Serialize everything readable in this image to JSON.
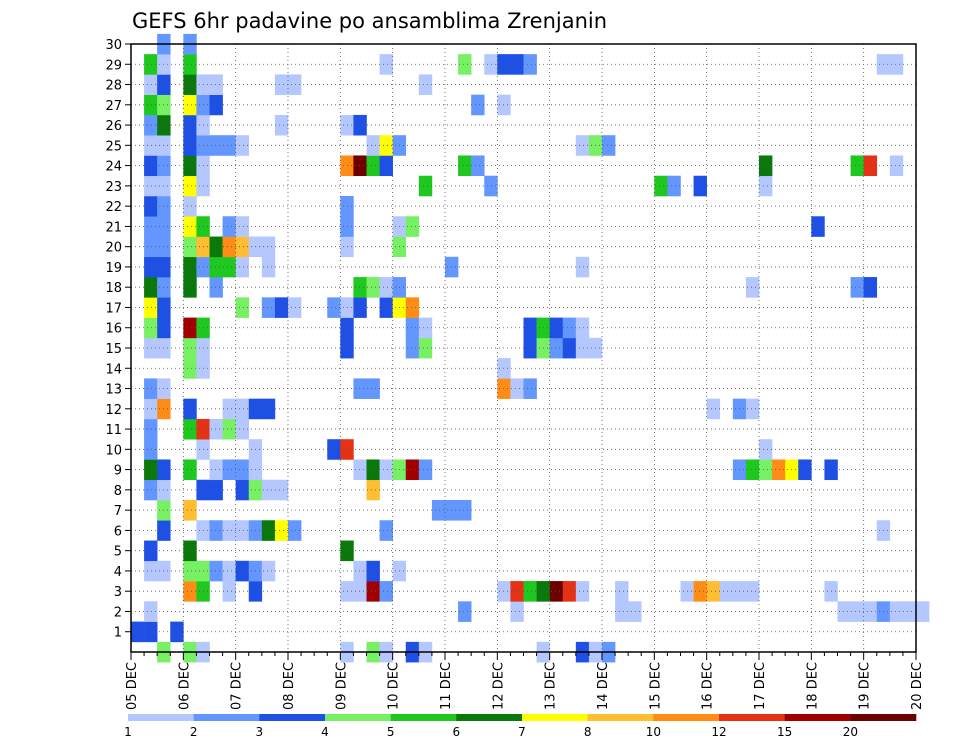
{
  "chart_data": {
    "type": "heatmap",
    "title": "GEFS 6hr padavine po ansamblima Zrenjanin",
    "xlabel": "",
    "ylabel": "",
    "x_ticks": [
      "05 DEC",
      "06 DEC",
      "07 DEC",
      "08 DEC",
      "09 DEC",
      "10 DEC",
      "11 DEC",
      "12 DEC",
      "13 DEC",
      "14 DEC",
      "15 DEC",
      "16 DEC",
      "17 DEC",
      "18 DEC",
      "19 DEC",
      "20 DEC"
    ],
    "y_ticks": [
      1,
      2,
      3,
      4,
      5,
      6,
      7,
      8,
      9,
      10,
      11,
      12,
      13,
      14,
      15,
      16,
      17,
      18,
      19,
      20,
      21,
      22,
      23,
      24,
      25,
      26,
      27,
      28,
      29,
      30
    ],
    "ylim": [
      0,
      30
    ],
    "x_steps": 60,
    "steps_per_day": 4,
    "grid": true,
    "legend": "colorbar-bottom",
    "colorbar": {
      "labels": [
        "1",
        "2",
        "3",
        "4",
        "5",
        "6",
        "7",
        "8",
        "10",
        "12",
        "15",
        "20"
      ],
      "colors": [
        "#b4c8ff",
        "#6496ff",
        "#1e50e6",
        "#78f064",
        "#1ec81e",
        "#0a780a",
        "#ffff00",
        "#ffbe32",
        "#ff8c14",
        "#e63214",
        "#a00000",
        "#6e0000"
      ]
    },
    "cells": [
      [
        1,
        0,
        3
      ],
      [
        1,
        1,
        3
      ],
      [
        1,
        3,
        3
      ],
      [
        2,
        1,
        1
      ],
      [
        2,
        38,
        1
      ],
      [
        2,
        25,
        2
      ],
      [
        2,
        29,
        1
      ],
      [
        2,
        37,
        1
      ],
      [
        2,
        54,
        1
      ],
      [
        2,
        55,
        1
      ],
      [
        2,
        56,
        1
      ],
      [
        2,
        57,
        2
      ],
      [
        2,
        58,
        1
      ],
      [
        2,
        59,
        1
      ],
      [
        2,
        60,
        1
      ],
      [
        3,
        4,
        9
      ],
      [
        3,
        5,
        5
      ],
      [
        3,
        7,
        1
      ],
      [
        3,
        9,
        3
      ],
      [
        3,
        16,
        1
      ],
      [
        3,
        17,
        1
      ],
      [
        3,
        18,
        11
      ],
      [
        3,
        19,
        2
      ],
      [
        3,
        28,
        1
      ],
      [
        3,
        29,
        10
      ],
      [
        3,
        30,
        5
      ],
      [
        3,
        31,
        6
      ],
      [
        3,
        32,
        12
      ],
      [
        3,
        33,
        10
      ],
      [
        3,
        34,
        1
      ],
      [
        3,
        37,
        1
      ],
      [
        3,
        42,
        1
      ],
      [
        3,
        43,
        9
      ],
      [
        3,
        44,
        8
      ],
      [
        3,
        45,
        1
      ],
      [
        3,
        46,
        1
      ],
      [
        3,
        47,
        1
      ],
      [
        3,
        53,
        1
      ],
      [
        4,
        1,
        1
      ],
      [
        4,
        2,
        1
      ],
      [
        4,
        4,
        4
      ],
      [
        4,
        5,
        4
      ],
      [
        4,
        6,
        2
      ],
      [
        4,
        7,
        1
      ],
      [
        4,
        8,
        3
      ],
      [
        4,
        9,
        2
      ],
      [
        4,
        10,
        1
      ],
      [
        4,
        17,
        1
      ],
      [
        4,
        18,
        3
      ],
      [
        4,
        20,
        1
      ],
      [
        5,
        1,
        3
      ],
      [
        5,
        4,
        6
      ],
      [
        5,
        16,
        6
      ],
      [
        6,
        2,
        3
      ],
      [
        6,
        5,
        1
      ],
      [
        6,
        6,
        2
      ],
      [
        6,
        7,
        1
      ],
      [
        6,
        8,
        1
      ],
      [
        6,
        9,
        2
      ],
      [
        6,
        10,
        6
      ],
      [
        6,
        11,
        7
      ],
      [
        6,
        12,
        2
      ],
      [
        6,
        19,
        2
      ],
      [
        6,
        57,
        1
      ],
      [
        7,
        2,
        4
      ],
      [
        7,
        4,
        8
      ],
      [
        7,
        23,
        2
      ],
      [
        7,
        24,
        2
      ],
      [
        7,
        25,
        2
      ],
      [
        8,
        1,
        2
      ],
      [
        8,
        2,
        1
      ],
      [
        8,
        5,
        3
      ],
      [
        8,
        6,
        3
      ],
      [
        8,
        8,
        3
      ],
      [
        8,
        9,
        4
      ],
      [
        8,
        10,
        1
      ],
      [
        8,
        11,
        1
      ],
      [
        8,
        18,
        8
      ],
      [
        9,
        1,
        6
      ],
      [
        9,
        2,
        3
      ],
      [
        9,
        4,
        5
      ],
      [
        9,
        6,
        1
      ],
      [
        9,
        7,
        2
      ],
      [
        9,
        8,
        2
      ],
      [
        9,
        9,
        1
      ],
      [
        9,
        17,
        1
      ],
      [
        9,
        18,
        6
      ],
      [
        9,
        19,
        1
      ],
      [
        9,
        20,
        4
      ],
      [
        9,
        21,
        11
      ],
      [
        9,
        22,
        2
      ],
      [
        9,
        46,
        2
      ],
      [
        9,
        47,
        5
      ],
      [
        9,
        48,
        4
      ],
      [
        9,
        49,
        9
      ],
      [
        9,
        50,
        7
      ],
      [
        9,
        51,
        3
      ],
      [
        9,
        53,
        3
      ],
      [
        10,
        1,
        2
      ],
      [
        10,
        5,
        1
      ],
      [
        10,
        9,
        1
      ],
      [
        10,
        15,
        3
      ],
      [
        10,
        16,
        10
      ],
      [
        10,
        48,
        1
      ],
      [
        11,
        1,
        2
      ],
      [
        11,
        4,
        5
      ],
      [
        11,
        5,
        10
      ],
      [
        11,
        6,
        1
      ],
      [
        11,
        7,
        4
      ],
      [
        11,
        8,
        1
      ],
      [
        12,
        1,
        1
      ],
      [
        12,
        2,
        9
      ],
      [
        12,
        4,
        3
      ],
      [
        12,
        7,
        1
      ],
      [
        12,
        8,
        1
      ],
      [
        12,
        9,
        3
      ],
      [
        12,
        10,
        3
      ],
      [
        12,
        44,
        1
      ],
      [
        12,
        46,
        2
      ],
      [
        12,
        47,
        1
      ],
      [
        13,
        1,
        2
      ],
      [
        13,
        2,
        1
      ],
      [
        13,
        17,
        2
      ],
      [
        13,
        18,
        2
      ],
      [
        13,
        28,
        9
      ],
      [
        13,
        29,
        1
      ],
      [
        13,
        30,
        2
      ],
      [
        14,
        4,
        4
      ],
      [
        14,
        5,
        1
      ],
      [
        14,
        28,
        1
      ],
      [
        15,
        1,
        1
      ],
      [
        15,
        2,
        1
      ],
      [
        15,
        4,
        4
      ],
      [
        15,
        5,
        1
      ],
      [
        15,
        16,
        3
      ],
      [
        15,
        21,
        2
      ],
      [
        15,
        22,
        4
      ],
      [
        15,
        30,
        3
      ],
      [
        15,
        31,
        4
      ],
      [
        15,
        32,
        2
      ],
      [
        15,
        33,
        3
      ],
      [
        15,
        34,
        1
      ],
      [
        15,
        35,
        1
      ],
      [
        16,
        1,
        4
      ],
      [
        16,
        2,
        3
      ],
      [
        16,
        4,
        11
      ],
      [
        16,
        5,
        5
      ],
      [
        16,
        16,
        3
      ],
      [
        16,
        21,
        2
      ],
      [
        16,
        22,
        1
      ],
      [
        16,
        30,
        3
      ],
      [
        16,
        31,
        5
      ],
      [
        16,
        32,
        3
      ],
      [
        16,
        33,
        2
      ],
      [
        16,
        34,
        1
      ],
      [
        17,
        1,
        7
      ],
      [
        17,
        2,
        3
      ],
      [
        17,
        8,
        4
      ],
      [
        17,
        10,
        2
      ],
      [
        17,
        11,
        3
      ],
      [
        17,
        12,
        1
      ],
      [
        17,
        15,
        2
      ],
      [
        17,
        16,
        1
      ],
      [
        17,
        17,
        3
      ],
      [
        17,
        19,
        3
      ],
      [
        17,
        20,
        7
      ],
      [
        17,
        21,
        9
      ],
      [
        18,
        1,
        6
      ],
      [
        18,
        2,
        2
      ],
      [
        18,
        4,
        6
      ],
      [
        18,
        6,
        2
      ],
      [
        18,
        17,
        5
      ],
      [
        18,
        18,
        4
      ],
      [
        18,
        19,
        1
      ],
      [
        18,
        20,
        2
      ],
      [
        18,
        47,
        1
      ],
      [
        18,
        55,
        2
      ],
      [
        18,
        56,
        3
      ],
      [
        19,
        1,
        3
      ],
      [
        19,
        2,
        3
      ],
      [
        19,
        4,
        6
      ],
      [
        19,
        5,
        2
      ],
      [
        19,
        6,
        5
      ],
      [
        19,
        7,
        5
      ],
      [
        19,
        8,
        1
      ],
      [
        19,
        10,
        1
      ],
      [
        19,
        24,
        2
      ],
      [
        19,
        34,
        1
      ],
      [
        20,
        1,
        2
      ],
      [
        20,
        2,
        2
      ],
      [
        20,
        4,
        4
      ],
      [
        20,
        5,
        8
      ],
      [
        20,
        6,
        6
      ],
      [
        20,
        7,
        9
      ],
      [
        20,
        8,
        8
      ],
      [
        20,
        9,
        1
      ],
      [
        20,
        10,
        1
      ],
      [
        20,
        16,
        1
      ],
      [
        20,
        20,
        4
      ],
      [
        21,
        1,
        2
      ],
      [
        21,
        2,
        2
      ],
      [
        21,
        4,
        7
      ],
      [
        21,
        5,
        5
      ],
      [
        21,
        7,
        2
      ],
      [
        21,
        8,
        1
      ],
      [
        21,
        16,
        2
      ],
      [
        21,
        20,
        1
      ],
      [
        21,
        21,
        4
      ],
      [
        21,
        52,
        3
      ],
      [
        22,
        1,
        3
      ],
      [
        22,
        2,
        2
      ],
      [
        22,
        4,
        1
      ],
      [
        22,
        16,
        2
      ],
      [
        23,
        1,
        1
      ],
      [
        23,
        2,
        1
      ],
      [
        23,
        4,
        7
      ],
      [
        23,
        5,
        1
      ],
      [
        23,
        22,
        5
      ],
      [
        23,
        27,
        2
      ],
      [
        23,
        40,
        5
      ],
      [
        23,
        41,
        2
      ],
      [
        23,
        43,
        3
      ],
      [
        23,
        48,
        1
      ],
      [
        24,
        1,
        3
      ],
      [
        24,
        2,
        2
      ],
      [
        24,
        4,
        6
      ],
      [
        24,
        5,
        1
      ],
      [
        24,
        16,
        9
      ],
      [
        24,
        17,
        12
      ],
      [
        24,
        18,
        5
      ],
      [
        24,
        19,
        3
      ],
      [
        24,
        25,
        5
      ],
      [
        24,
        26,
        2
      ],
      [
        24,
        48,
        6
      ],
      [
        24,
        55,
        5
      ],
      [
        24,
        56,
        10
      ],
      [
        24,
        58,
        1
      ],
      [
        25,
        1,
        1
      ],
      [
        25,
        2,
        1
      ],
      [
        25,
        4,
        3
      ],
      [
        25,
        5,
        2
      ],
      [
        25,
        6,
        2
      ],
      [
        25,
        7,
        2
      ],
      [
        25,
        8,
        1
      ],
      [
        25,
        18,
        1
      ],
      [
        25,
        19,
        7
      ],
      [
        25,
        20,
        2
      ],
      [
        25,
        34,
        1
      ],
      [
        25,
        35,
        4
      ],
      [
        25,
        36,
        2
      ],
      [
        26,
        1,
        2
      ],
      [
        26,
        2,
        6
      ],
      [
        26,
        4,
        3
      ],
      [
        26,
        5,
        1
      ],
      [
        26,
        11,
        1
      ],
      [
        26,
        16,
        1
      ],
      [
        26,
        17,
        3
      ],
      [
        27,
        1,
        5
      ],
      [
        27,
        2,
        4
      ],
      [
        27,
        4,
        7
      ],
      [
        27,
        5,
        2
      ],
      [
        27,
        6,
        3
      ],
      [
        27,
        26,
        2
      ],
      [
        27,
        28,
        1
      ],
      [
        28,
        1,
        1
      ],
      [
        28,
        2,
        3
      ],
      [
        28,
        4,
        6
      ],
      [
        28,
        5,
        1
      ],
      [
        28,
        6,
        1
      ],
      [
        28,
        11,
        1
      ],
      [
        28,
        12,
        1
      ],
      [
        28,
        22,
        1
      ],
      [
        29,
        1,
        5
      ],
      [
        29,
        2,
        1
      ],
      [
        29,
        4,
        5
      ],
      [
        29,
        19,
        1
      ],
      [
        29,
        25,
        4
      ],
      [
        29,
        27,
        1
      ],
      [
        29,
        28,
        3
      ],
      [
        29,
        29,
        3
      ],
      [
        29,
        30,
        2
      ],
      [
        29,
        57,
        1
      ],
      [
        29,
        58,
        1
      ],
      [
        30,
        2,
        2
      ],
      [
        30,
        4,
        2
      ],
      [
        0,
        2,
        4
      ],
      [
        0,
        4,
        4
      ],
      [
        0,
        5,
        1
      ],
      [
        0,
        16,
        1
      ],
      [
        0,
        18,
        4
      ],
      [
        0,
        19,
        1
      ],
      [
        0,
        21,
        3
      ],
      [
        0,
        22,
        1
      ],
      [
        0,
        31,
        1
      ],
      [
        0,
        34,
        3
      ],
      [
        0,
        35,
        1
      ],
      [
        0,
        36,
        2
      ]
    ]
  }
}
